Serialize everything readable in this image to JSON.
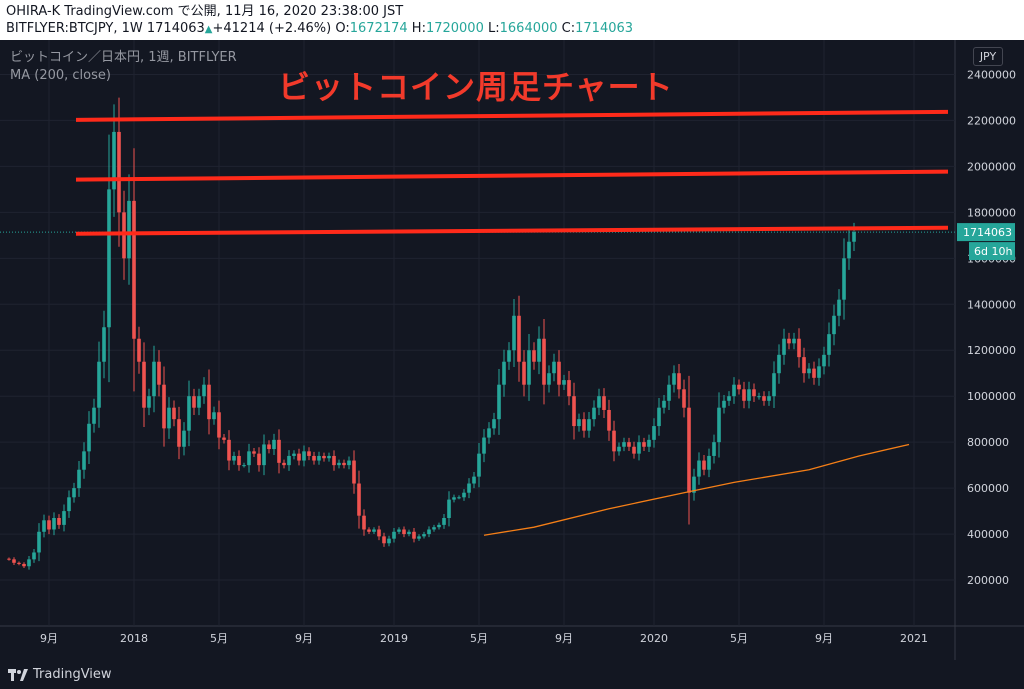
{
  "header": {
    "line1": "OHIRA-K TradingView.com で公開, 11月 16, 2020 23:38:00 JST",
    "symbol": "BITFLYER:BTCJPY, 1W",
    "last": "1714063",
    "change": "+41214 (+2.46%)",
    "o_label": "O:",
    "o": "1672174",
    "h_label": "H:",
    "h": "1720000",
    "l_label": "L:",
    "l": "1664000",
    "c_label": "C:",
    "c": "1714063",
    "arrow_icon": "triangle-up-icon"
  },
  "legend": {
    "series_name": "ビットコイン／日本円, 1週, BITFLYER",
    "indicator": "MA (200, close)"
  },
  "headline": "ビットコイン周足チャート",
  "currency_button": "JPY",
  "price_label": "1714063",
  "countdown_label": "6d 10h",
  "footer": {
    "brand": "TradingView",
    "logo_icon": "tradingview-logo-icon"
  },
  "colors": {
    "up": "#26a69a",
    "down": "#ef5350",
    "ma": "#f57f17",
    "lines": "#ff2a1a",
    "background": "#131722",
    "grid": "#1f2330"
  },
  "chart_data": {
    "type": "candlestick",
    "title": "ビットコイン周足チャート",
    "ylim": [
      0,
      2550000
    ],
    "y_ticks": [
      200000,
      400000,
      600000,
      800000,
      1000000,
      1200000,
      1400000,
      1600000,
      1800000,
      2000000,
      2200000,
      2400000
    ],
    "y_tick_labels": [
      "200000",
      "400000",
      "600000",
      "800000",
      "1000000",
      "1200000",
      "1400000",
      "1600000",
      "1800000",
      "2000000",
      "2200000",
      "2400000"
    ],
    "x_ticks": [
      "9月",
      "2018",
      "5月",
      "9月",
      "2019",
      "5月",
      "9月",
      "2020",
      "5月",
      "9月",
      "2021"
    ],
    "x_tick_weeks": [
      8,
      25,
      42,
      59,
      77,
      94,
      111,
      129,
      146,
      163,
      181
    ],
    "horizontal_lines": [
      2220000,
      1960000,
      1720000
    ],
    "ma_200": [
      [
        95,
        395000
      ],
      [
        105,
        430000
      ],
      [
        120,
        510000
      ],
      [
        135,
        580000
      ],
      [
        145,
        625000
      ],
      [
        160,
        680000
      ],
      [
        170,
        740000
      ],
      [
        180,
        790000
      ]
    ],
    "weekly_close": [
      290000,
      275000,
      270000,
      260000,
      290000,
      320000,
      410000,
      460000,
      420000,
      470000,
      440000,
      500000,
      560000,
      600000,
      680000,
      760000,
      880000,
      950000,
      1150000,
      1300000,
      1900000,
      2150000,
      1800000,
      1600000,
      1850000,
      1250000,
      1150000,
      950000,
      1000000,
      1150000,
      1050000,
      860000,
      950000,
      900000,
      780000,
      850000,
      1000000,
      950000,
      1000000,
      1050000,
      900000,
      930000,
      820000,
      810000,
      720000,
      740000,
      700000,
      700000,
      760000,
      750000,
      700000,
      790000,
      770000,
      810000,
      710000,
      700000,
      740000,
      750000,
      720000,
      760000,
      740000,
      720000,
      740000,
      730000,
      740000,
      700000,
      710000,
      700000,
      720000,
      620000,
      480000,
      420000,
      410000,
      420000,
      390000,
      360000,
      380000,
      410000,
      420000,
      400000,
      410000,
      380000,
      390000,
      400000,
      420000,
      430000,
      440000,
      470000,
      550000,
      560000,
      560000,
      580000,
      620000,
      650000,
      750000,
      820000,
      860000,
      900000,
      1050000,
      1150000,
      1200000,
      1350000,
      1150000,
      1050000,
      1200000,
      1150000,
      1250000,
      1050000,
      1100000,
      1150000,
      1050000,
      1070000,
      1000000,
      870000,
      900000,
      850000,
      900000,
      950000,
      1000000,
      940000,
      850000,
      760000,
      780000,
      800000,
      780000,
      750000,
      800000,
      780000,
      810000,
      870000,
      950000,
      980000,
      1050000,
      1100000,
      1030000,
      950000,
      580000,
      650000,
      720000,
      680000,
      740000,
      800000,
      950000,
      980000,
      1000000,
      1050000,
      1030000,
      980000,
      1030000,
      1000000,
      1000000,
      980000,
      1000000,
      1100000,
      1180000,
      1250000,
      1230000,
      1250000,
      1170000,
      1100000,
      1120000,
      1080000,
      1130000,
      1180000,
      1270000,
      1350000,
      1420000,
      1600000,
      1672174,
      1714063
    ]
  }
}
